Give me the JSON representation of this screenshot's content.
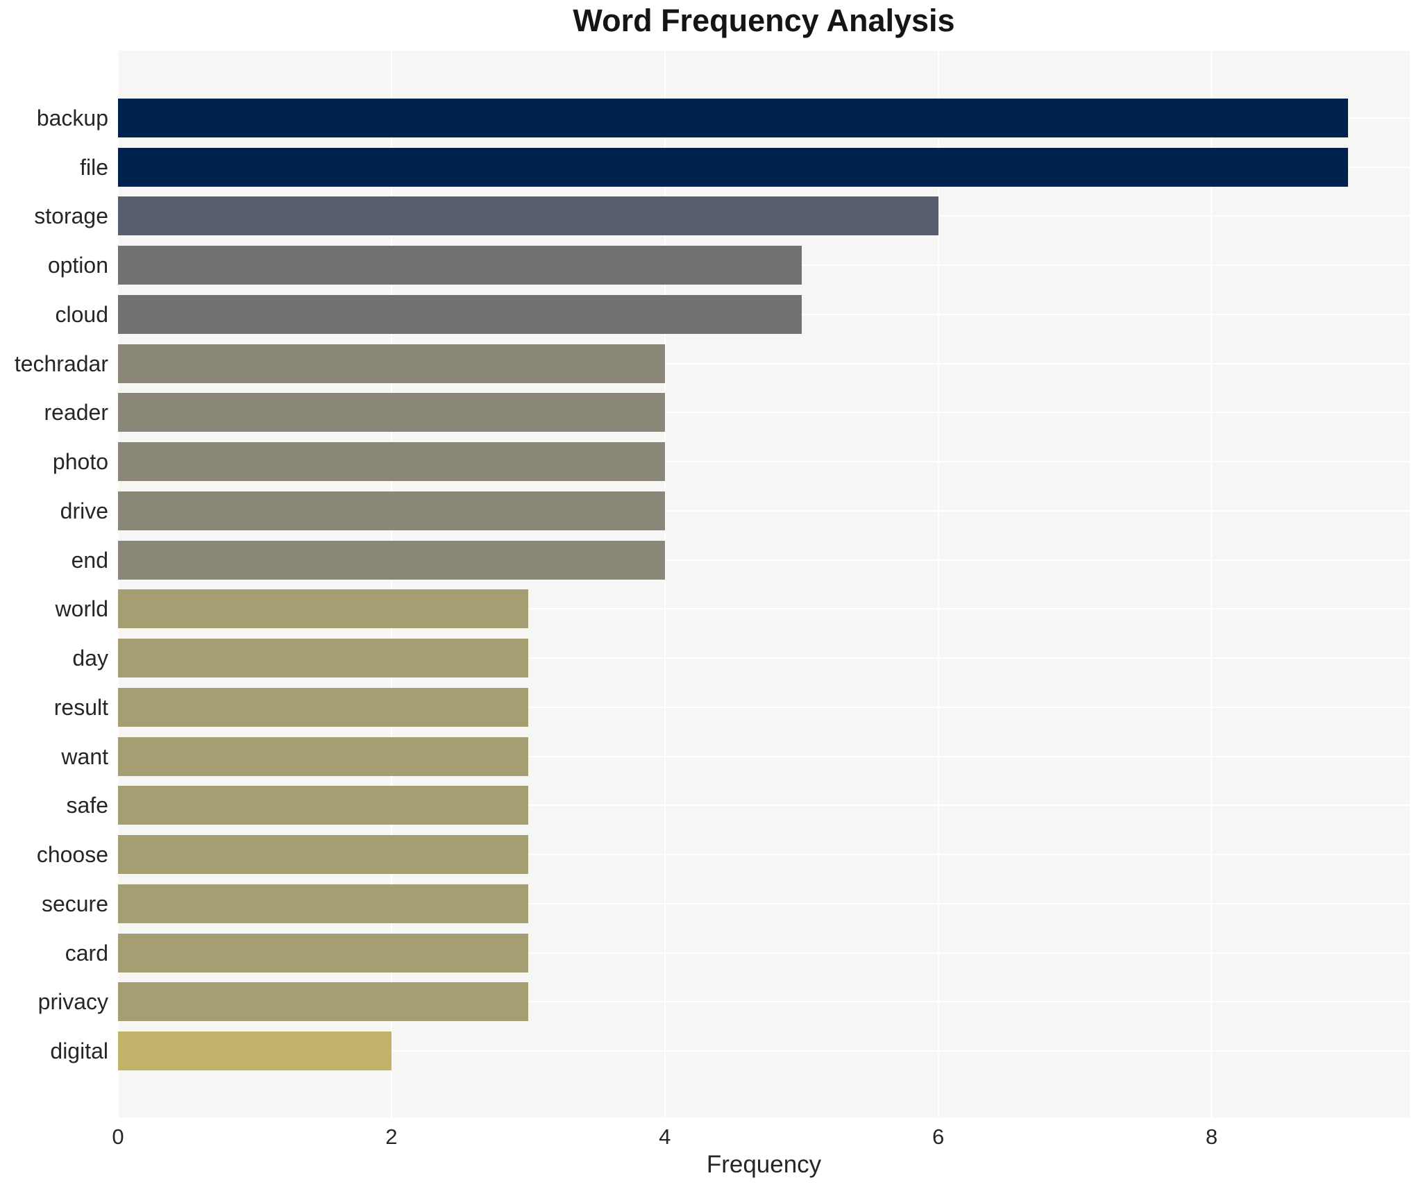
{
  "chart_data": {
    "type": "bar",
    "orientation": "horizontal",
    "title": "Word Frequency Analysis",
    "xlabel": "Frequency",
    "ylabel": "",
    "categories": [
      "backup",
      "file",
      "storage",
      "option",
      "cloud",
      "techradar",
      "reader",
      "photo",
      "drive",
      "end",
      "world",
      "day",
      "result",
      "want",
      "safe",
      "choose",
      "secure",
      "card",
      "privacy",
      "digital"
    ],
    "values": [
      9,
      9,
      6,
      5,
      5,
      4,
      4,
      4,
      4,
      4,
      3,
      3,
      3,
      3,
      3,
      3,
      3,
      3,
      3,
      2
    ],
    "bar_colors": [
      "#00224e",
      "#00224e",
      "#575d6d",
      "#707173",
      "#707173",
      "#8a8779",
      "#8a8779",
      "#8a8779",
      "#8a8779",
      "#8a8779",
      "#a69e73",
      "#a69e73",
      "#a69e73",
      "#a69e73",
      "#a69e73",
      "#a69e73",
      "#a69e73",
      "#a69e73",
      "#a69e73",
      "#c3b269"
    ],
    "x_ticks": [
      0,
      2,
      4,
      6,
      8
    ],
    "xlim": [
      0,
      9.45
    ],
    "grid": true,
    "grid_color": "#ffffff",
    "panel_background": "#f6f6f4",
    "text_color": "#262626",
    "legend_position": "none"
  }
}
